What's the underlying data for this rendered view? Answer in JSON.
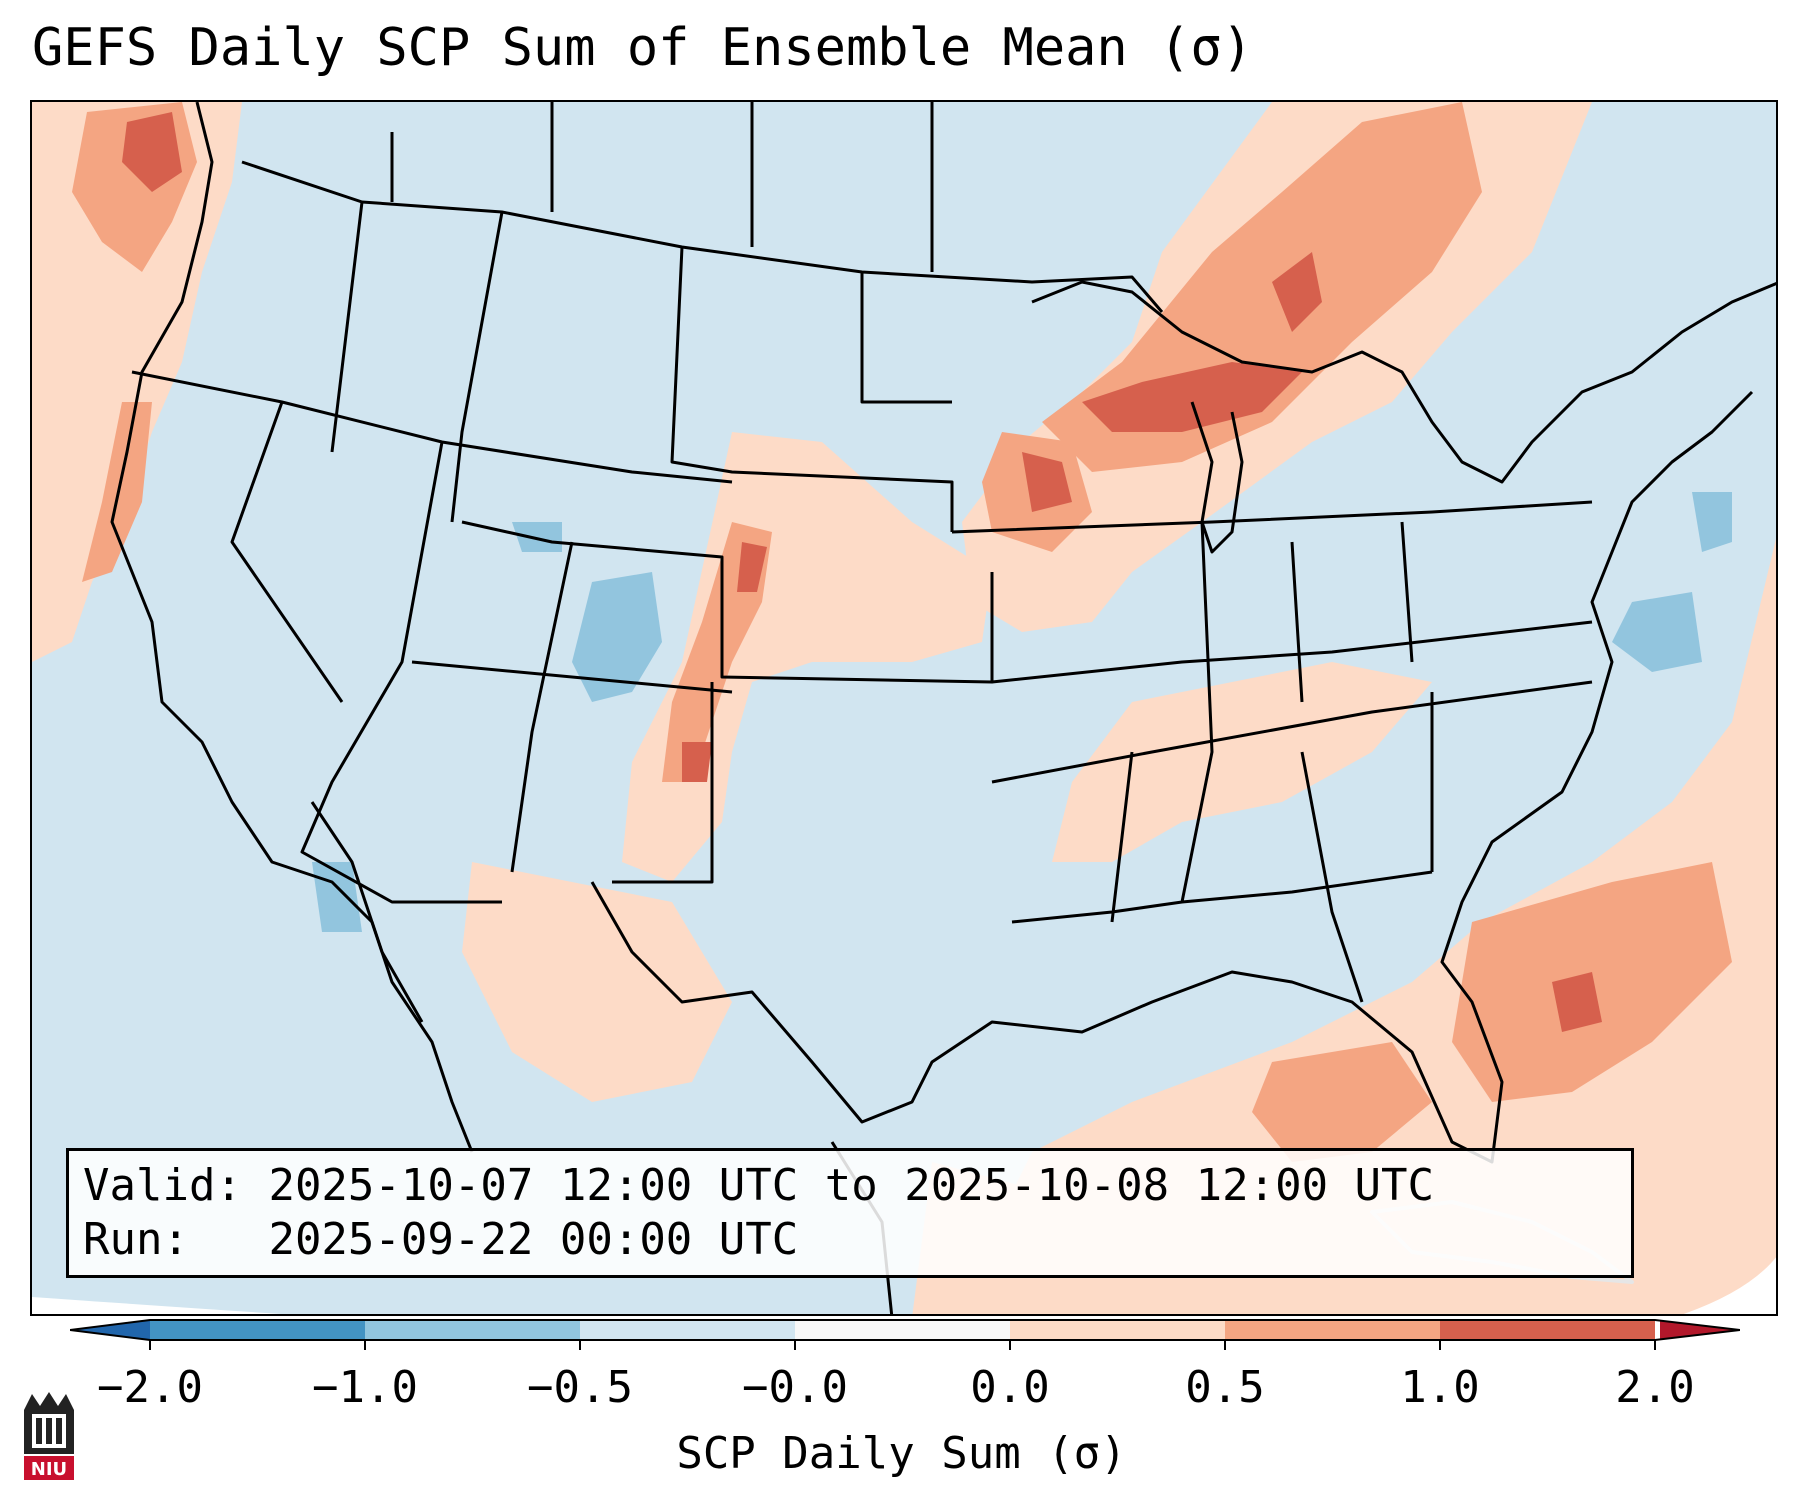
{
  "title": "GEFS Daily SCP Sum of Ensemble Mean (σ)",
  "info": {
    "valid_label": "Valid:",
    "valid_value": "2025-10-07 12:00 UTC to 2025-10-08 12:00 UTC",
    "run_label": "Run:",
    "run_value": "2025-09-22 00:00 UTC"
  },
  "colorbar": {
    "label": "SCP Daily Sum (σ)",
    "ticks": [
      "−2.0",
      "−1.0",
      "−0.5",
      "−0.0",
      "0.0",
      "0.5",
      "1.0",
      "2.0"
    ],
    "bins": [
      {
        "from": -2.0,
        "to": -1.0,
        "color": "#4393c3"
      },
      {
        "from": -1.0,
        "to": -0.5,
        "color": "#92c5de"
      },
      {
        "from": -0.5,
        "to": -0.0,
        "color": "#d1e5f0"
      },
      {
        "from": -0.0,
        "to": 0.0,
        "color": "#f7f7f7"
      },
      {
        "from": 0.0,
        "to": 0.5,
        "color": "#fddbc7"
      },
      {
        "from": 0.5,
        "to": 1.0,
        "color": "#f4a582"
      },
      {
        "from": 1.0,
        "to": 2.0,
        "color": "#d6604d"
      }
    ],
    "under_color": "#2166ac",
    "over_color": "#b2182b"
  },
  "colors": {
    "background": "#d1e5f0",
    "low": "#92c5de",
    "light_pos": "#fddbc7",
    "mid_pos": "#f4a582",
    "high_pos": "#d6604d",
    "highest": "#b2182b",
    "borders": "#000000"
  },
  "logo": {
    "text": "NIU",
    "icon": "niu-logo-icon"
  }
}
